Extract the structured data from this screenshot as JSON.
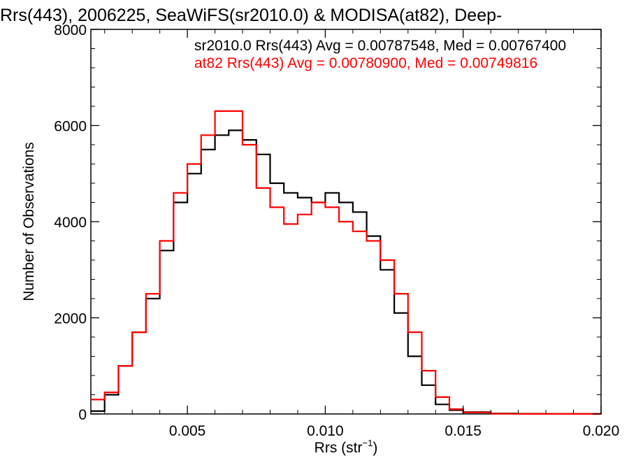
{
  "chart_data": {
    "type": "line",
    "title": "Rrs(443), 2006225, SeaWiFS(sr2010.0) & MODISA(at82), Deep-",
    "xlabel_main": "Rrs (str",
    "xlabel_sup": "−1",
    "xlabel_tail": ")",
    "ylabel": "Number of Observations",
    "xlim": [
      0.0015,
      0.02
    ],
    "ylim": [
      0,
      8000
    ],
    "xticks": [
      0.005,
      0.01,
      0.015,
      0.02
    ],
    "xtick_labels": [
      "0.005",
      "0.010",
      "0.015",
      "0.020"
    ],
    "yticks": [
      0,
      2000,
      4000,
      6000,
      8000
    ],
    "ytick_labels": [
      "0",
      "2000",
      "4000",
      "6000",
      "8000"
    ],
    "grid": false,
    "legend_position": "top-right",
    "annotations": [
      {
        "text": "sr2010.0 Rrs(443) Avg = 0.00787548, Med = 0.00767400",
        "color": "#000000"
      },
      {
        "text": "at82 Rrs(443) Avg = 0.00780900, Med = 0.00749816",
        "color": "#ff0000"
      }
    ],
    "series": [
      {
        "color": "#000000",
        "x": [
          0.0015,
          0.002,
          0.0025,
          0.003,
          0.0035,
          0.004,
          0.0045,
          0.005,
          0.0055,
          0.006,
          0.0065,
          0.007,
          0.0075,
          0.008,
          0.0085,
          0.009,
          0.0095,
          0.01,
          0.0105,
          0.011,
          0.0115,
          0.012,
          0.0125,
          0.013,
          0.0135,
          0.014,
          0.0145,
          0.015,
          0.016,
          0.017,
          0.018,
          0.019,
          0.02
        ],
        "values": [
          60,
          400,
          1000,
          1700,
          2400,
          3400,
          4400,
          5000,
          5500,
          5800,
          5900,
          5700,
          5400,
          4800,
          4600,
          4500,
          4400,
          4600,
          4400,
          4200,
          3700,
          3000,
          2100,
          1200,
          600,
          200,
          80,
          40,
          10,
          5,
          2,
          1,
          0
        ]
      },
      {
        "color": "#ff0000",
        "x": [
          0.0015,
          0.002,
          0.0025,
          0.003,
          0.0035,
          0.004,
          0.0045,
          0.005,
          0.0055,
          0.006,
          0.0065,
          0.007,
          0.0075,
          0.008,
          0.0085,
          0.009,
          0.0095,
          0.01,
          0.0105,
          0.011,
          0.0115,
          0.012,
          0.0125,
          0.013,
          0.0135,
          0.014,
          0.0145,
          0.015,
          0.016,
          0.017,
          0.018,
          0.019,
          0.02
        ],
        "values": [
          300,
          450,
          1000,
          1700,
          2500,
          3600,
          4600,
          5200,
          5800,
          6300,
          6300,
          5600,
          4700,
          4300,
          3950,
          4150,
          4400,
          4300,
          4000,
          3800,
          3600,
          3200,
          2500,
          1700,
          900,
          350,
          100,
          30,
          5,
          2,
          1,
          0,
          0
        ]
      }
    ]
  }
}
